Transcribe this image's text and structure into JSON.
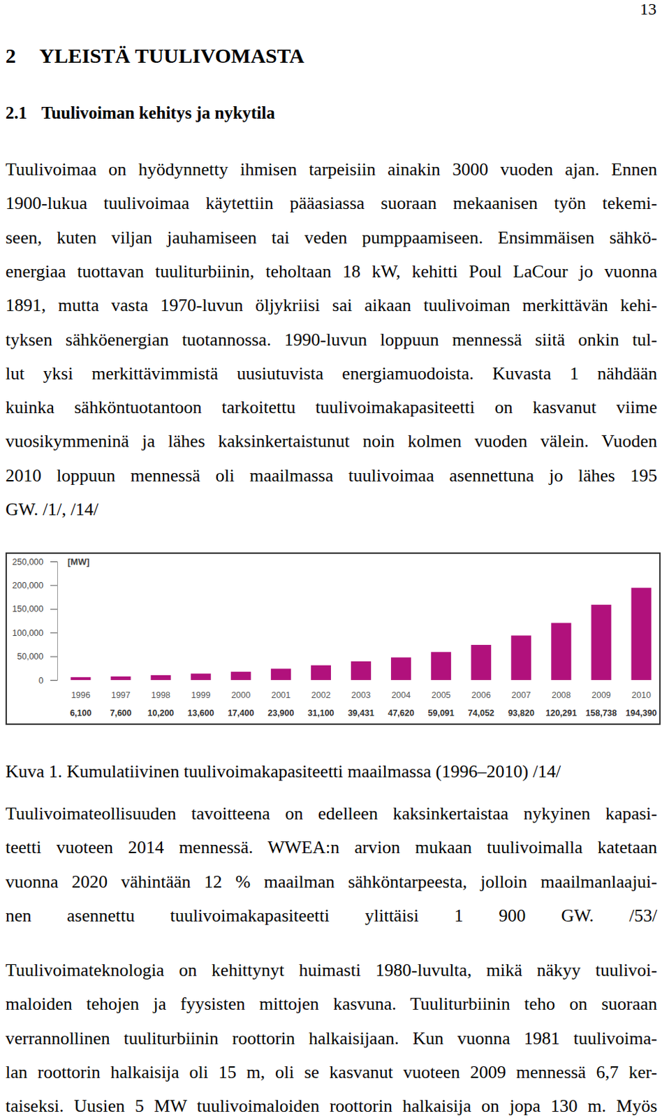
{
  "page_number": "13",
  "heading": {
    "number": "2",
    "text": "YLEISTÄ TUULIVOMASTA"
  },
  "subheading": {
    "number": "2.1",
    "text": "Tuulivoiman kehitys ja nykytila"
  },
  "paragraphs": [
    {
      "lines": [
        "Tuulivoimaa on hyödynnetty ihmisen tarpeisiin ainakin 3000 vuoden ajan. Ennen",
        "1900-lukua tuulivoimaa käytettiin pääasiassa suoraan mekaanisen työn tekemi-",
        "seen, kuten viljan jauhamiseen tai veden pumppaamiseen. Ensimmäisen sähkö-",
        "energiaa tuottavan tuuliturbiinin, teholtaan 18 kW, kehitti Poul LaCour jo vuonna",
        "1891, mutta vasta 1970-luvun öljykriisi sai aikaan tuulivoiman merkittävän kehi-",
        "tyksen sähköenergian tuotannossa. 1990-luvun loppuun mennessä siitä onkin tul-",
        "lut yksi merkittävimmistä uusiutuvista energiamuodoista. Kuvasta 1 nähdään",
        "kuinka sähköntuotantoon tarkoitettu tuulivoimakapasiteetti on kasvanut viime",
        "vuosikymmeninä ja lähes kaksinkertaistunut noin kolmen vuoden välein. Vuoden",
        "2010 loppuun mennessä oli maailmassa tuulivoimaa asennettuna jo lähes 195",
        "GW. /1/, /14/"
      ]
    },
    {
      "lines": [
        "Tuulivoimateollisuuden tavoitteena on edelleen kaksinkertaistaa nykyinen kapasi-",
        "teetti vuoteen 2014 mennessä. WWEA:n arvion mukaan tuulivoimalla katetaan",
        "vuonna 2020 vähintään 12 % maailman sähköntarpeesta, jolloin maailmanlaajui-",
        "nen asennettu tuulivoimakapasiteetti ylittäisi 1 900 GW. /53/"
      ]
    },
    {
      "lines": [
        "Tuulivoimateknologia on kehittynyt huimasti 1980-luvulta, mikä näkyy tuulivoi-",
        "maloiden tehojen ja fyysisten mittojen kasvuna. Tuuliturbiinin teho on suoraan",
        "verrannollinen tuuliturbiinin roottorin halkaisijaan. Kun vuonna 1981 tuulivoima-",
        "lan roottorin halkaisija oli 15 m, oli se kasvanut vuoteen 2009 mennessä 6,7 ker-",
        "taiseksi. Uusien 5 MW tuulivoimaloiden roottorin halkaisija on jopa 130 m. Myös"
      ]
    }
  ],
  "caption": "Kuva 1. Kumulatiivinen tuulivoimakapasiteetti maailmassa (1996–2010) /14/",
  "chart_data": {
    "type": "bar",
    "ylabel": "[MW]",
    "categories": [
      "1996",
      "1997",
      "1998",
      "1999",
      "2000",
      "2001",
      "2002",
      "2003",
      "2004",
      "2005",
      "2006",
      "2007",
      "2008",
      "2009",
      "2010"
    ],
    "values": [
      6100,
      7600,
      10200,
      13600,
      17400,
      23900,
      31100,
      39431,
      47620,
      59091,
      74052,
      93820,
      120291,
      158738,
      194390
    ],
    "value_labels": [
      "6,100",
      "7,600",
      "10,200",
      "13,600",
      "17,400",
      "23,900",
      "31,100",
      "39,431",
      "47,620",
      "59,091",
      "74,052",
      "93,820",
      "120,291",
      "158,738",
      "194,390"
    ],
    "data_labels": true,
    "color": "#b1117c",
    "ylim": [
      0,
      250000
    ],
    "yticks": [
      0,
      {
        "value": 50000,
        "label": "50,000"
      },
      {
        "value": 100000,
        "label": "100,000"
      },
      {
        "value": 150000,
        "label": "150,000"
      },
      {
        "value": 200000,
        "label": "200,000"
      },
      {
        "value": 250000,
        "label": "250,000"
      }
    ],
    "grid": false
  }
}
